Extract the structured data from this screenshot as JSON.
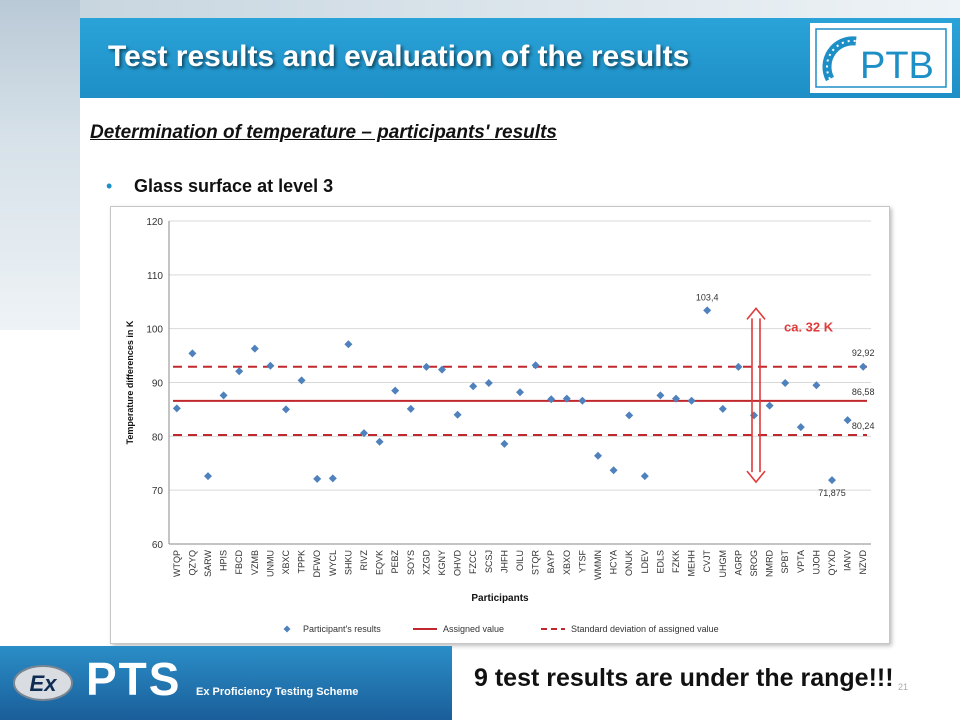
{
  "slide": {
    "title": "Test results and evaluation of the results",
    "subtitle": "Determination of  temperature – participants' results",
    "bullet": "Glass surface at level 3",
    "bottom_note": "9 test results are under the range!!!",
    "page_number": "21",
    "logo_text": "PTB",
    "footer_brand": "PTS",
    "footer_badge": "Ex",
    "footer_subtitle": "Ex Proficiency Testing Scheme",
    "colors": {
      "header": "#1d8fc6",
      "point": "#4f81bd",
      "assigned": "#c0282e",
      "annotation": "#e03a3a"
    }
  },
  "chart_data": {
    "type": "scatter",
    "title": "",
    "xlabel": "Participants",
    "ylabel": "Temperature differences in K",
    "ylim": [
      60,
      120
    ],
    "yticks": [
      60,
      70,
      80,
      90,
      100,
      110,
      120
    ],
    "grid": true,
    "legend_position": "bottom",
    "categories": [
      "WTQP",
      "QZYQ",
      "SARW",
      "HPIS",
      "FBCD",
      "VZMB",
      "UNMU",
      "XBXC",
      "TPPK",
      "DFWO",
      "WYCL",
      "SHKU",
      "RIVZ",
      "EQVK",
      "PEBZ",
      "SOYS",
      "XZGD",
      "KGNY",
      "OHVD",
      "FZCC",
      "SCSJ",
      "JHFH",
      "OILU",
      "STQR",
      "BAYP",
      "XBXO",
      "YTSF",
      "WMMN",
      "HCYA",
      "ONUK",
      "LDEV",
      "EDLS",
      "FZKK",
      "MEHH",
      "CVJT",
      "UHGM",
      "AGRP",
      "SROG",
      "NMRD",
      "SPBT",
      "VPTA",
      "UJOH",
      "QYXD",
      "IANV",
      "NZVD"
    ],
    "series": [
      {
        "name": "Participant's results",
        "values": [
          85.2,
          95.4,
          72.6,
          87.6,
          92.1,
          96.3,
          93.1,
          85.0,
          90.4,
          72.1,
          72.2,
          97.1,
          80.6,
          79.0,
          88.5,
          85.1,
          92.9,
          92.4,
          84.0,
          89.3,
          89.9,
          78.6,
          88.2,
          93.2,
          86.9,
          87.0,
          86.6,
          76.4,
          73.7,
          83.9,
          72.6,
          87.6,
          87.0,
          86.6,
          103.4,
          85.1,
          92.9,
          83.9,
          85.7,
          89.9,
          81.7,
          89.5,
          71.875,
          83.0,
          92.92
        ]
      }
    ],
    "assigned_value": {
      "name": "Assigned value",
      "value": 86.58
    },
    "std_band": {
      "name": "Standard deviation of assigned value",
      "upper": 92.92,
      "lower": 80.24
    },
    "annotations": [
      {
        "text": "103,4"
      },
      {
        "text": "92,92"
      },
      {
        "text": "86,58"
      },
      {
        "text": "80,24"
      },
      {
        "text": "71,875"
      },
      {
        "text": "ca. 32 K"
      }
    ]
  }
}
